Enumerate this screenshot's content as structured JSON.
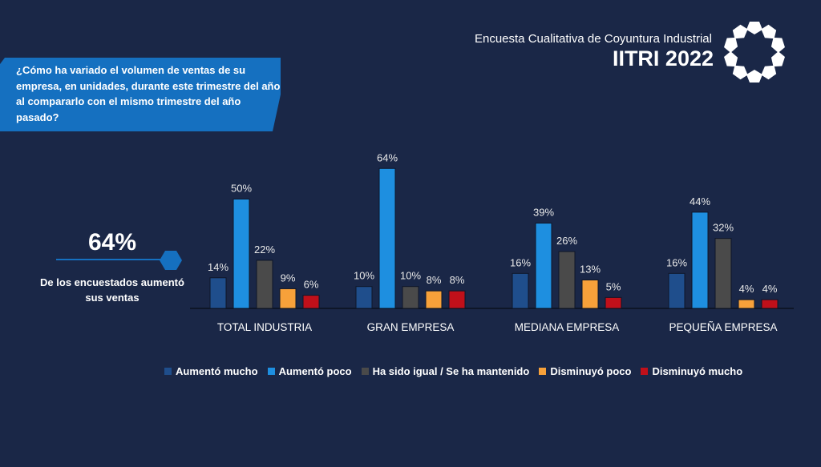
{
  "header": {
    "subtitle": "Encuesta Cualitativa de Coyuntura Industrial",
    "title": "IITRI 2022"
  },
  "question": "¿Cómo ha variado el volumen de ventas de su empresa, en unidades, durante este trimestre del año al compararlo con el mismo trimestre del año pasado?",
  "kpi": {
    "value": "64%",
    "label": "De los encuestados aumentó sus ventas"
  },
  "chart_data": {
    "type": "bar",
    "categories": [
      "TOTAL INDUSTRIA",
      "GRAN EMPRESA",
      "MEDIANA EMPRESA",
      "PEQUEÑA EMPRESA"
    ],
    "series": [
      {
        "name": "Aumentó mucho",
        "color": "#1f4e8c",
        "values": [
          14,
          10,
          16,
          16
        ]
      },
      {
        "name": "Aumentó poco",
        "color": "#1e8fe0",
        "values": [
          50,
          64,
          39,
          44
        ]
      },
      {
        "name": "Ha sido igual / Se ha mantenido",
        "color": "#4a4a4a",
        "values": [
          22,
          10,
          26,
          32
        ]
      },
      {
        "name": "Disminuyó poco",
        "color": "#f7a13a",
        "values": [
          9,
          8,
          13,
          4
        ]
      },
      {
        "name": "Disminuyó mucho",
        "color": "#c0101a",
        "values": [
          6,
          8,
          5,
          4
        ]
      }
    ],
    "unit": "%",
    "legend": "bottom",
    "grid": false
  }
}
